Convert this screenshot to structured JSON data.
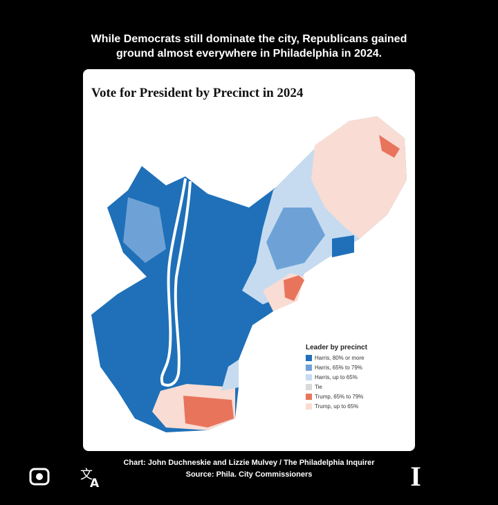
{
  "headline": "While Democrats still dominate the city, Republicans gained ground almost everywhere in Philadelphia in 2024.",
  "map": {
    "title": "Vote for President by Precinct in 2024",
    "legend": {
      "title": "Leader by precinct",
      "items": [
        {
          "label": "Harris, 80% or more",
          "color": "#1f70b8"
        },
        {
          "label": "Harris, 65% to 79%",
          "color": "#6ea2d6"
        },
        {
          "label": "Harris, up to 65%",
          "color": "#c6dbf0"
        },
        {
          "label": "Tie",
          "color": "#d9d9d9"
        },
        {
          "label": "Trump, 65% to 79%",
          "color": "#e8745c"
        },
        {
          "label": "Trump, up to 65%",
          "color": "#f9dcd3"
        }
      ]
    }
  },
  "credit": "Chart: John Duchneskie and Lizzie Mulvey / The Philadelphia Inquirer",
  "source": "Source: Phila. City Commissioners"
}
